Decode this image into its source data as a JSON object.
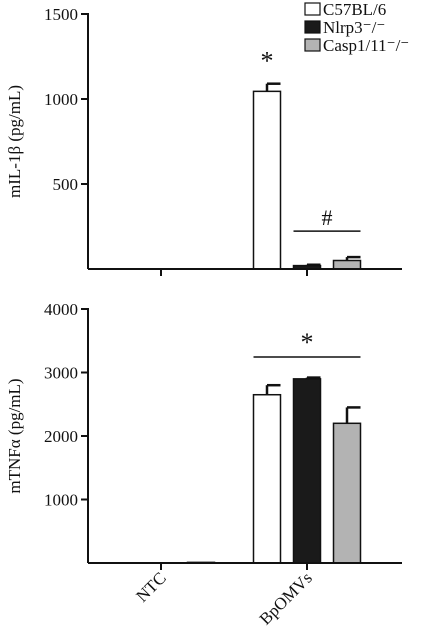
{
  "chart_data": [
    {
      "type": "bar",
      "ylabel": "mIL-1β (pg/mL)",
      "categories": [
        null,
        null
      ],
      "ylim": [
        0,
        1500
      ],
      "yticks": [
        500,
        1000,
        1500
      ],
      "legend": "upper right",
      "series": [
        {
          "name": "C57BL/6",
          "color": "#ffffff",
          "values": [
            0,
            1045
          ],
          "errors": [
            0,
            45
          ]
        },
        {
          "name": "Nlrp3⁻/⁻",
          "color": "#1a1a1a",
          "values": [
            0,
            20
          ],
          "errors": [
            0,
            5
          ]
        },
        {
          "name": "Casp1/11⁻/⁻",
          "color": "#b3b3b3",
          "values": [
            0,
            50
          ],
          "errors": [
            0,
            20
          ]
        }
      ],
      "annotations": [
        "*",
        "#"
      ]
    },
    {
      "type": "bar",
      "ylabel": "mTNFα (pg/mL)",
      "categories": [
        "NTC",
        "BpOMVs"
      ],
      "ylim": [
        0,
        4000
      ],
      "yticks": [
        1000,
        2000,
        3000,
        4000
      ],
      "series": [
        {
          "color": "#ffffff",
          "values": [
            0,
            2650
          ],
          "errors": [
            0,
            150
          ]
        },
        {
          "color": "#1a1a1a",
          "values": [
            0,
            2900
          ],
          "errors": [
            0,
            20
          ]
        },
        {
          "color": "#b3b3b3",
          "values": [
            10,
            2200
          ],
          "errors": [
            0,
            250
          ]
        }
      ],
      "annotations": [
        "*"
      ]
    }
  ]
}
